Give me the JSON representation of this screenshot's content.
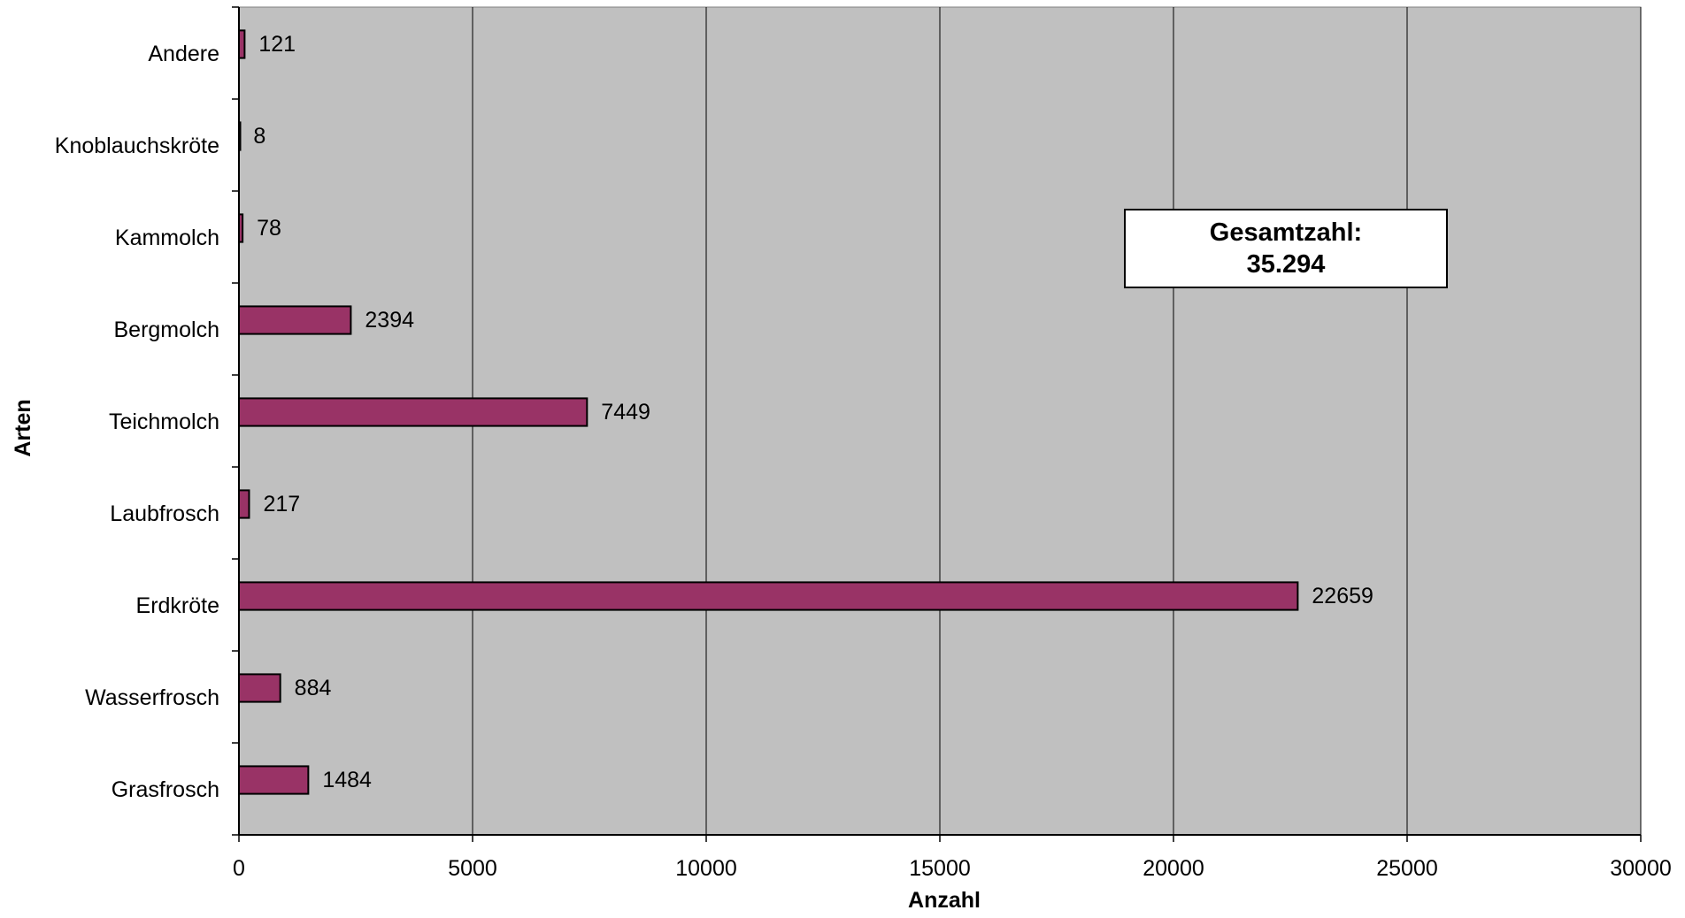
{
  "chart_data": {
    "type": "bar",
    "orientation": "horizontal",
    "categories": [
      "Grasfrosch",
      "Wasserfrosch",
      "Erdkröte",
      "Laubfrosch",
      "Teichmolch",
      "Bergmolch",
      "Kammolch",
      "Knoblauchskröte",
      "Andere"
    ],
    "values": [
      1484,
      884,
      22659,
      217,
      7449,
      2394,
      78,
      8,
      121
    ],
    "data_labels": [
      "1484",
      "884",
      "22659",
      "217",
      "7449",
      "2394",
      "78",
      "8",
      "121"
    ],
    "xlabel": "Anzahl",
    "ylabel": "Arten",
    "xlim": [
      0,
      30000
    ],
    "xticks": [
      "0",
      "5000",
      "10000",
      "15000",
      "20000",
      "25000",
      "30000"
    ],
    "grid": "vertical",
    "bar_color": "#993366",
    "plot_background": "#c0c0c0",
    "annotation": {
      "line1": "Gesamtzahl:",
      "line2": "35.294"
    }
  }
}
